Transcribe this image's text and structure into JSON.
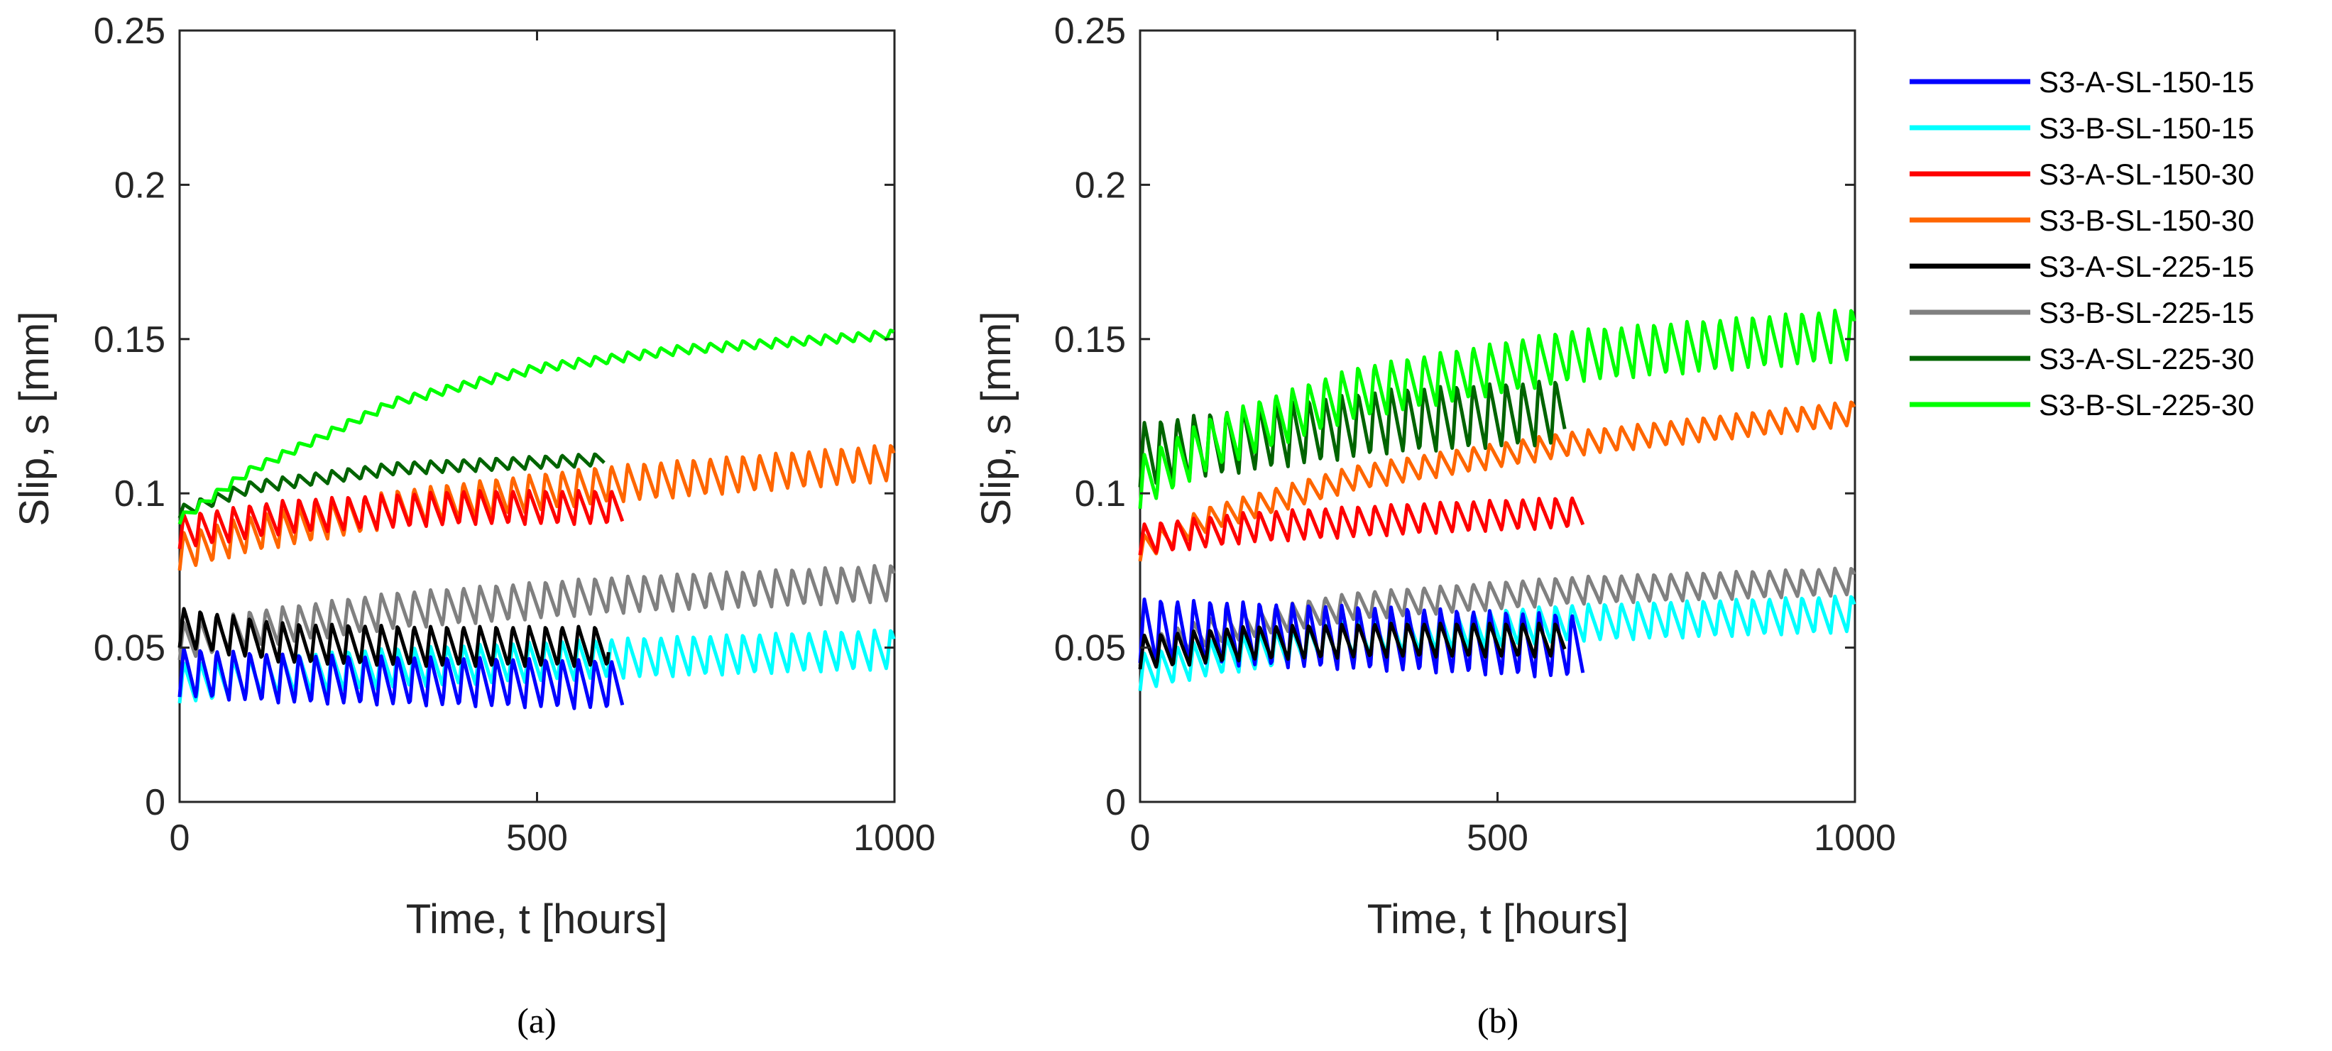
{
  "chart_data": [
    {
      "type": "line",
      "caption": "(a)",
      "xlabel": "Time, t [hours]",
      "ylabel": "Slip, s [mm]",
      "xlim": [
        0,
        1000
      ],
      "ylim": [
        0,
        0.25
      ],
      "xticks": [
        "0",
        "500",
        "1000"
      ],
      "yticks": [
        "0",
        "0.05",
        "0.1",
        "0.15",
        "0.2",
        "0.25"
      ],
      "series": [
        {
          "name": "S3-B-SL-150-15",
          "t_end": 1000,
          "base": [
            [
              0,
              0.032
            ],
            [
              100,
              0.034
            ],
            [
              300,
              0.037
            ],
            [
              600,
              0.04
            ],
            [
              1000,
              0.043
            ]
          ],
          "amp": 0.013,
          "period": 23
        },
        {
          "name": "S3-B-SL-225-15",
          "t_end": 1000,
          "base": [
            [
              0,
              0.046
            ],
            [
              100,
              0.05
            ],
            [
              300,
              0.056
            ],
            [
              600,
              0.061
            ],
            [
              1000,
              0.065
            ]
          ],
          "amp": 0.012,
          "period": 23
        },
        {
          "name": "S3-A-SL-150-15",
          "t_end": 620,
          "base": [
            [
              0,
              0.034
            ],
            [
              150,
              0.032
            ],
            [
              400,
              0.031
            ],
            [
              620,
              0.03
            ]
          ],
          "amp": 0.016,
          "period": 23
        },
        {
          "name": "S3-A-SL-225-15",
          "t_end": 600,
          "base": [
            [
              0,
              0.05
            ],
            [
              150,
              0.045
            ],
            [
              350,
              0.044
            ],
            [
              600,
              0.044
            ]
          ],
          "amp": 0.013,
          "period": 23
        },
        {
          "name": "S3-B-SL-150-30",
          "t_end": 1000,
          "base": [
            [
              0,
              0.075
            ],
            [
              100,
              0.081
            ],
            [
              300,
              0.089
            ],
            [
              600,
              0.097
            ],
            [
              1000,
              0.104
            ]
          ],
          "amp": 0.012,
          "period": 23
        },
        {
          "name": "S3-A-SL-150-30",
          "t_end": 620,
          "base": [
            [
              0,
              0.082
            ],
            [
              150,
              0.087
            ],
            [
              400,
              0.09
            ],
            [
              620,
              0.09
            ]
          ],
          "amp": 0.011,
          "period": 23
        },
        {
          "name": "S3-A-SL-225-30",
          "t_end": 595,
          "base": [
            [
              0,
              0.092
            ],
            [
              100,
              0.1
            ],
            [
              300,
              0.106
            ],
            [
              595,
              0.109
            ]
          ],
          "amp": 0.004,
          "period": 23
        },
        {
          "name": "S3-B-SL-225-30",
          "t_end": 1000,
          "base": [
            [
              0,
              0.09
            ],
            [
              100,
              0.106
            ],
            [
              300,
              0.128
            ],
            [
              500,
              0.139
            ],
            [
              700,
              0.145
            ],
            [
              1000,
              0.15
            ]
          ],
          "amp": 0.003,
          "period": 23
        }
      ]
    },
    {
      "type": "line",
      "caption": "(b)",
      "xlabel": "Time, t [hours]",
      "ylabel": "Slip, s [mm]",
      "xlim": [
        0,
        1000
      ],
      "ylim": [
        0,
        0.25
      ],
      "xticks": [
        "0",
        "500",
        "1000"
      ],
      "yticks": [
        "0",
        "0.05",
        "0.1",
        "0.15",
        "0.2",
        "0.25"
      ],
      "series": [
        {
          "name": "S3-B-SL-150-15",
          "t_end": 1000,
          "base": [
            [
              0,
              0.036
            ],
            [
              100,
              0.041
            ],
            [
              300,
              0.047
            ],
            [
              600,
              0.052
            ],
            [
              1000,
              0.055
            ]
          ],
          "amp": 0.012,
          "period": 23
        },
        {
          "name": "S3-B-SL-225-15",
          "t_end": 1000,
          "base": [
            [
              0,
              0.044
            ],
            [
              100,
              0.051
            ],
            [
              300,
              0.059
            ],
            [
              600,
              0.064
            ],
            [
              1000,
              0.067
            ]
          ],
          "amp": 0.009,
          "period": 23
        },
        {
          "name": "S3-A-SL-150-15",
          "t_end": 620,
          "base": [
            [
              0,
              0.045
            ],
            [
              150,
              0.044
            ],
            [
              400,
              0.042
            ],
            [
              620,
              0.04
            ]
          ],
          "amp": 0.021,
          "period": 23
        },
        {
          "name": "S3-A-SL-225-15",
          "t_end": 595,
          "base": [
            [
              0,
              0.043
            ],
            [
              150,
              0.046
            ],
            [
              350,
              0.047
            ],
            [
              595,
              0.047
            ]
          ],
          "amp": 0.011,
          "period": 23
        },
        {
          "name": "S3-B-SL-150-30",
          "t_end": 1000,
          "base": [
            [
              0,
              0.078
            ],
            [
              100,
              0.088
            ],
            [
              300,
              0.101
            ],
            [
              600,
              0.112
            ],
            [
              1000,
              0.122
            ]
          ],
          "amp": 0.008,
          "period": 23
        },
        {
          "name": "S3-A-SL-150-30",
          "t_end": 620,
          "base": [
            [
              0,
              0.08
            ],
            [
              150,
              0.084
            ],
            [
              400,
              0.087
            ],
            [
              620,
              0.089
            ]
          ],
          "amp": 0.01,
          "period": 23
        },
        {
          "name": "S3-A-SL-225-30",
          "t_end": 595,
          "base": [
            [
              0,
              0.102
            ],
            [
              150,
              0.107
            ],
            [
              350,
              0.113
            ],
            [
              595,
              0.116
            ]
          ],
          "amp": 0.021,
          "period": 23
        },
        {
          "name": "S3-B-SL-225-30",
          "t_end": 1000,
          "base": [
            [
              0,
              0.095
            ],
            [
              100,
              0.108
            ],
            [
              300,
              0.124
            ],
            [
              600,
              0.136
            ],
            [
              1000,
              0.143
            ]
          ],
          "amp": 0.017,
          "period": 23
        }
      ]
    }
  ],
  "legend": {
    "entries": [
      {
        "name": "S3-A-SL-150-15",
        "color": "#0000FF"
      },
      {
        "name": "S3-B-SL-150-15",
        "color": "#00FFFF"
      },
      {
        "name": "S3-A-SL-150-30",
        "color": "#FF0000"
      },
      {
        "name": "S3-B-SL-150-30",
        "color": "#FF6600"
      },
      {
        "name": "S3-A-SL-225-15",
        "color": "#000000"
      },
      {
        "name": "S3-B-SL-225-15",
        "color": "#808080"
      },
      {
        "name": "S3-A-SL-225-30",
        "color": "#006400"
      },
      {
        "name": "S3-B-SL-225-30",
        "color": "#00FF00"
      }
    ]
  }
}
